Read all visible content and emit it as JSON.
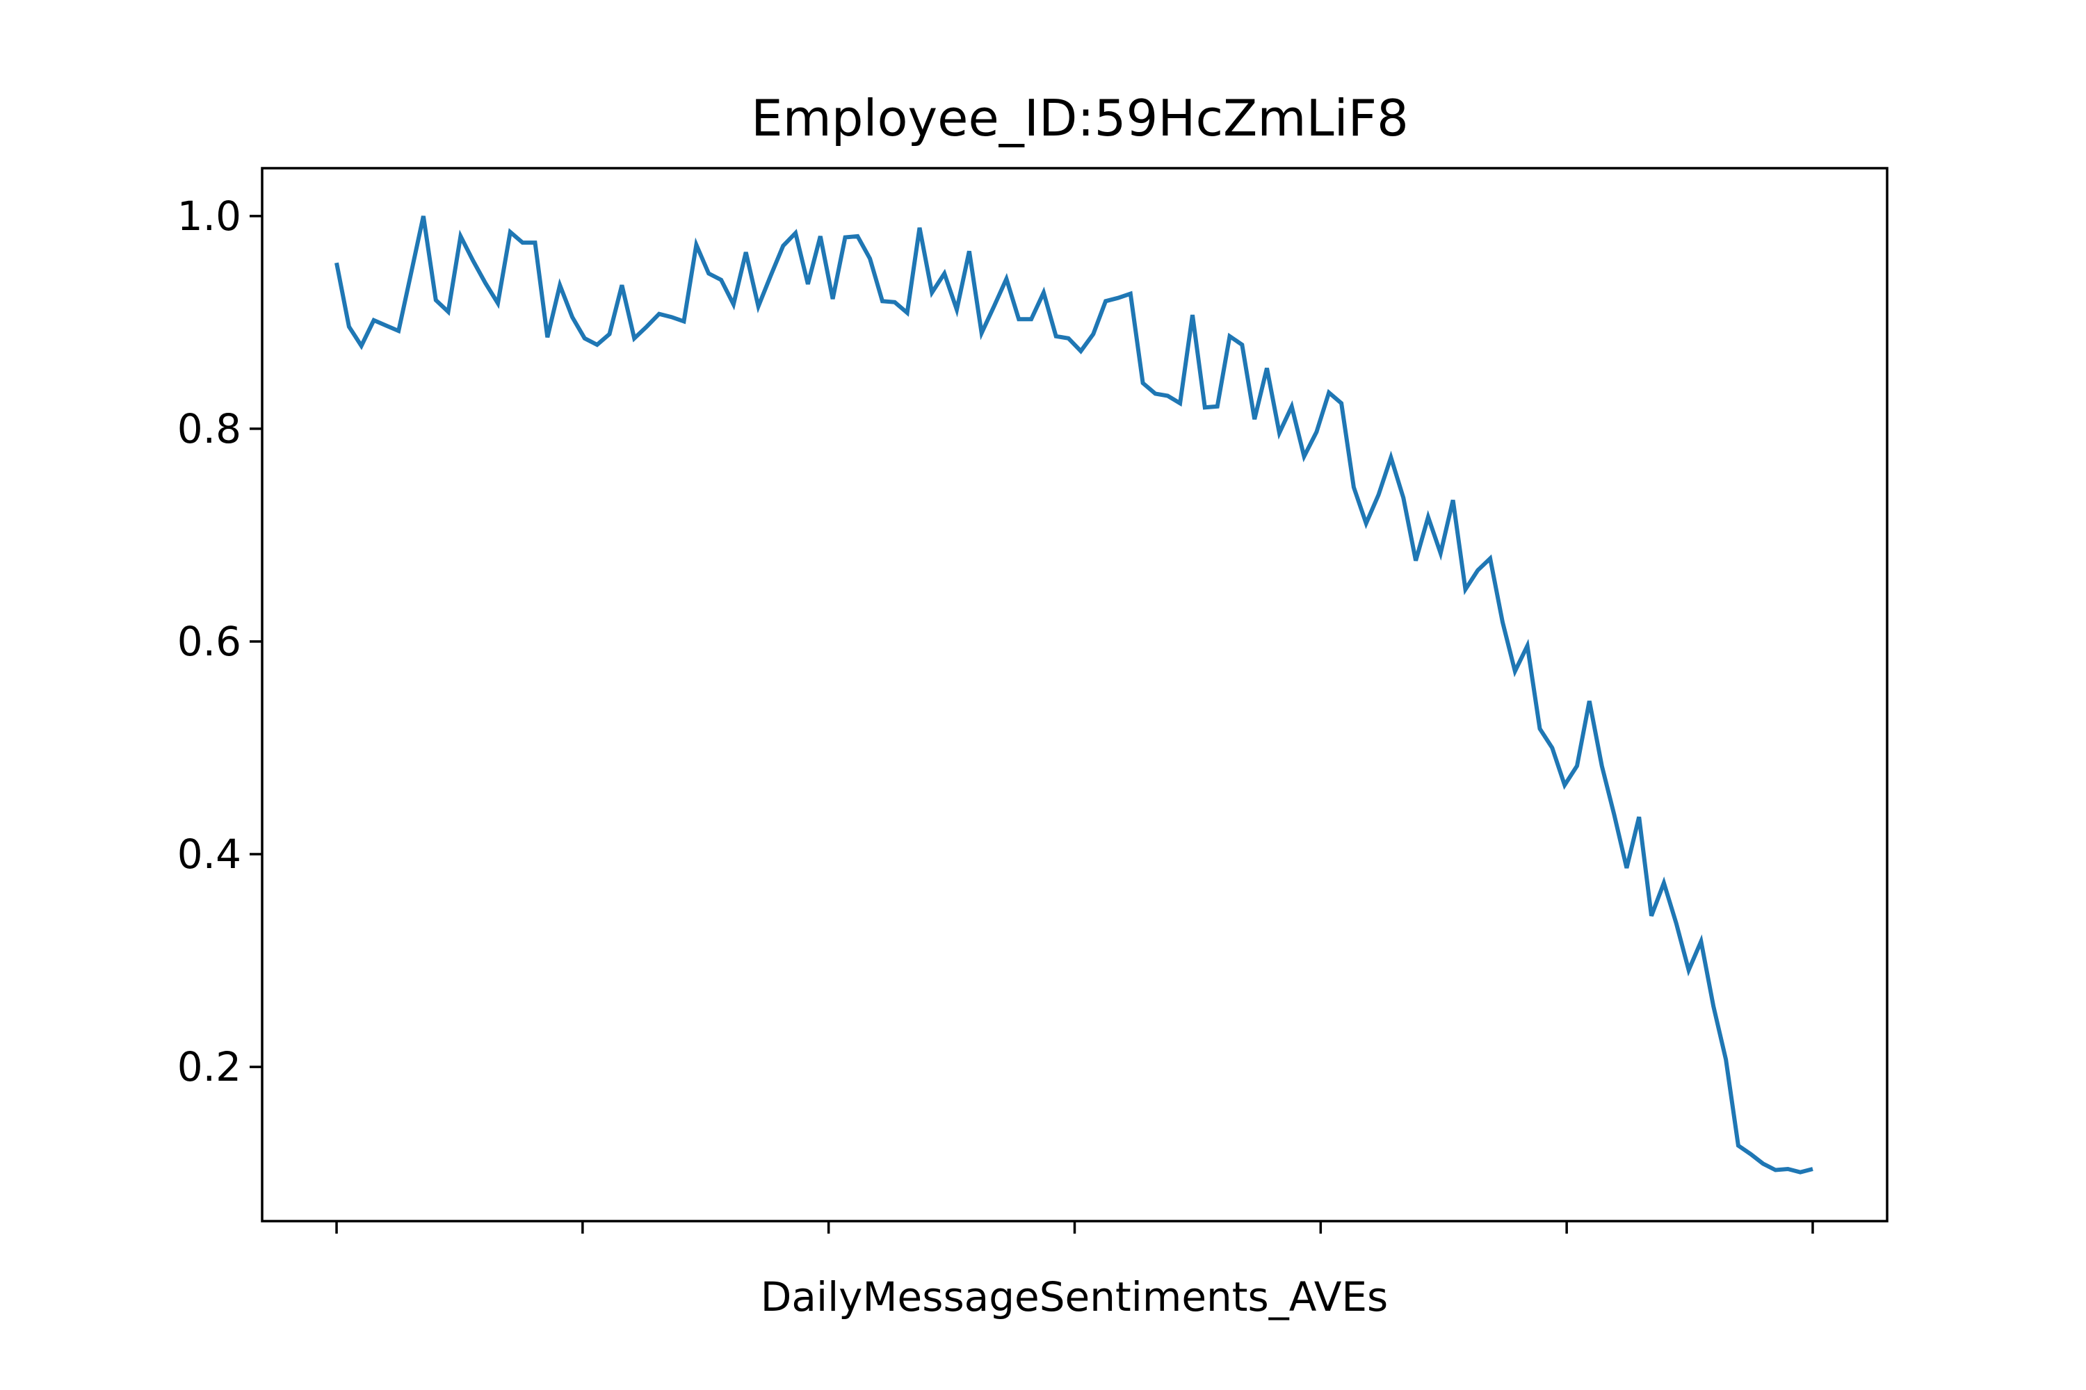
{
  "chart_data": {
    "type": "line",
    "title": "Employee_ID:59HcZmLiF8",
    "xlabel": "DailyMessageSentiments_AVEs",
    "ylabel": "",
    "x_tick_labels_visible": false,
    "x_tick_count": 7,
    "xlim": [
      -6,
      125
    ],
    "ylim": [
      0.055,
      1.045
    ],
    "y_ticks": [
      {
        "value": 0.2,
        "label": "0.2"
      },
      {
        "value": 0.4,
        "label": "0.4"
      },
      {
        "value": 0.6,
        "label": "0.6"
      },
      {
        "value": 0.8,
        "label": "0.8"
      },
      {
        "value": 1.0,
        "label": "1.0"
      }
    ],
    "grid": false,
    "legend": "none",
    "series": [
      {
        "color": "#1f77b4",
        "x": [
          0,
          1,
          2,
          3,
          4,
          5,
          6,
          7,
          8,
          9,
          10,
          11,
          12,
          13,
          14,
          15,
          16,
          17,
          18,
          19,
          20,
          21,
          22,
          23,
          24,
          25,
          26,
          27,
          28,
          29,
          30,
          31,
          32,
          33,
          34,
          35,
          36,
          37,
          38,
          39,
          40,
          41,
          42,
          43,
          44,
          45,
          46,
          47,
          48,
          49,
          50,
          51,
          52,
          53,
          54,
          55,
          56,
          57,
          58,
          59,
          60,
          61,
          62,
          63,
          64,
          65,
          66,
          67,
          68,
          69,
          70,
          71,
          72,
          73,
          74,
          75,
          76,
          77,
          78,
          79,
          80,
          81,
          82,
          83,
          84,
          85,
          86,
          87,
          88,
          89,
          90,
          91,
          92,
          93,
          94,
          95,
          96,
          97,
          98,
          99,
          100,
          101,
          102,
          103,
          104,
          105,
          106,
          107,
          108,
          109,
          110,
          111,
          112,
          113,
          114,
          115,
          116,
          117,
          118,
          119
        ],
        "values": [
          0.956,
          0.896,
          0.878,
          0.902,
          0.897,
          0.892,
          0.946,
          1.0,
          0.921,
          0.91,
          0.981,
          0.958,
          0.937,
          0.918,
          0.985,
          0.975,
          0.975,
          0.886,
          0.935,
          0.905,
          0.885,
          0.879,
          0.889,
          0.935,
          0.885,
          0.896,
          0.908,
          0.905,
          0.901,
          0.973,
          0.946,
          0.94,
          0.917,
          0.966,
          0.915,
          0.944,
          0.972,
          0.984,
          0.936,
          0.981,
          0.922,
          0.98,
          0.981,
          0.96,
          0.92,
          0.919,
          0.909,
          0.989,
          0.928,
          0.946,
          0.912,
          0.967,
          0.89,
          0.915,
          0.941,
          0.903,
          0.903,
          0.928,
          0.887,
          0.885,
          0.873,
          0.889,
          0.92,
          0.923,
          0.927,
          0.843,
          0.833,
          0.831,
          0.824,
          0.907,
          0.82,
          0.821,
          0.887,
          0.879,
          0.809,
          0.857,
          0.796,
          0.821,
          0.774,
          0.797,
          0.834,
          0.824,
          0.745,
          0.711,
          0.738,
          0.773,
          0.735,
          0.676,
          0.717,
          0.683,
          0.733,
          0.649,
          0.667,
          0.678,
          0.618,
          0.572,
          0.596,
          0.518,
          0.5,
          0.465,
          0.483,
          0.544,
          0.483,
          0.437,
          0.387,
          0.435,
          0.342,
          0.373,
          0.335,
          0.291,
          0.318,
          0.257,
          0.207,
          0.126,
          0.118,
          0.109,
          0.103,
          0.104,
          0.101,
          0.104
        ]
      }
    ]
  }
}
